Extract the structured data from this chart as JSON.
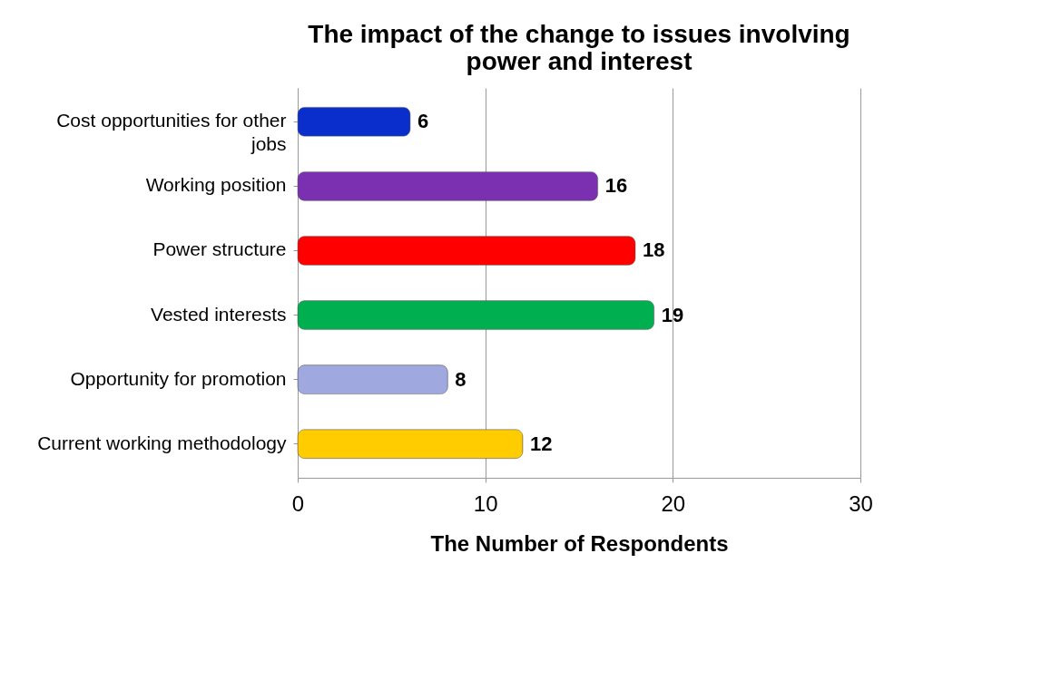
{
  "chart_data": {
    "type": "bar",
    "orientation": "horizontal",
    "title": "The impact of the change to  issues involving power and interest",
    "categories": [
      "Cost opportunities for other jobs",
      "Working position",
      "Power structure",
      "Vested interests",
      "Opportunity for promotion",
      "Current working methodology"
    ],
    "values": [
      6,
      16,
      18,
      19,
      8,
      12
    ],
    "colors": [
      "#0a2ecc",
      "#7a30b0",
      "#ff0000",
      "#00b050",
      "#a0a8e0",
      "#ffcc00"
    ],
    "xlim": [
      0,
      30
    ],
    "xticks": [
      0,
      10,
      20,
      30
    ],
    "xlabel": "The Number of  Respondents",
    "grid": "x",
    "data_labels": true
  }
}
